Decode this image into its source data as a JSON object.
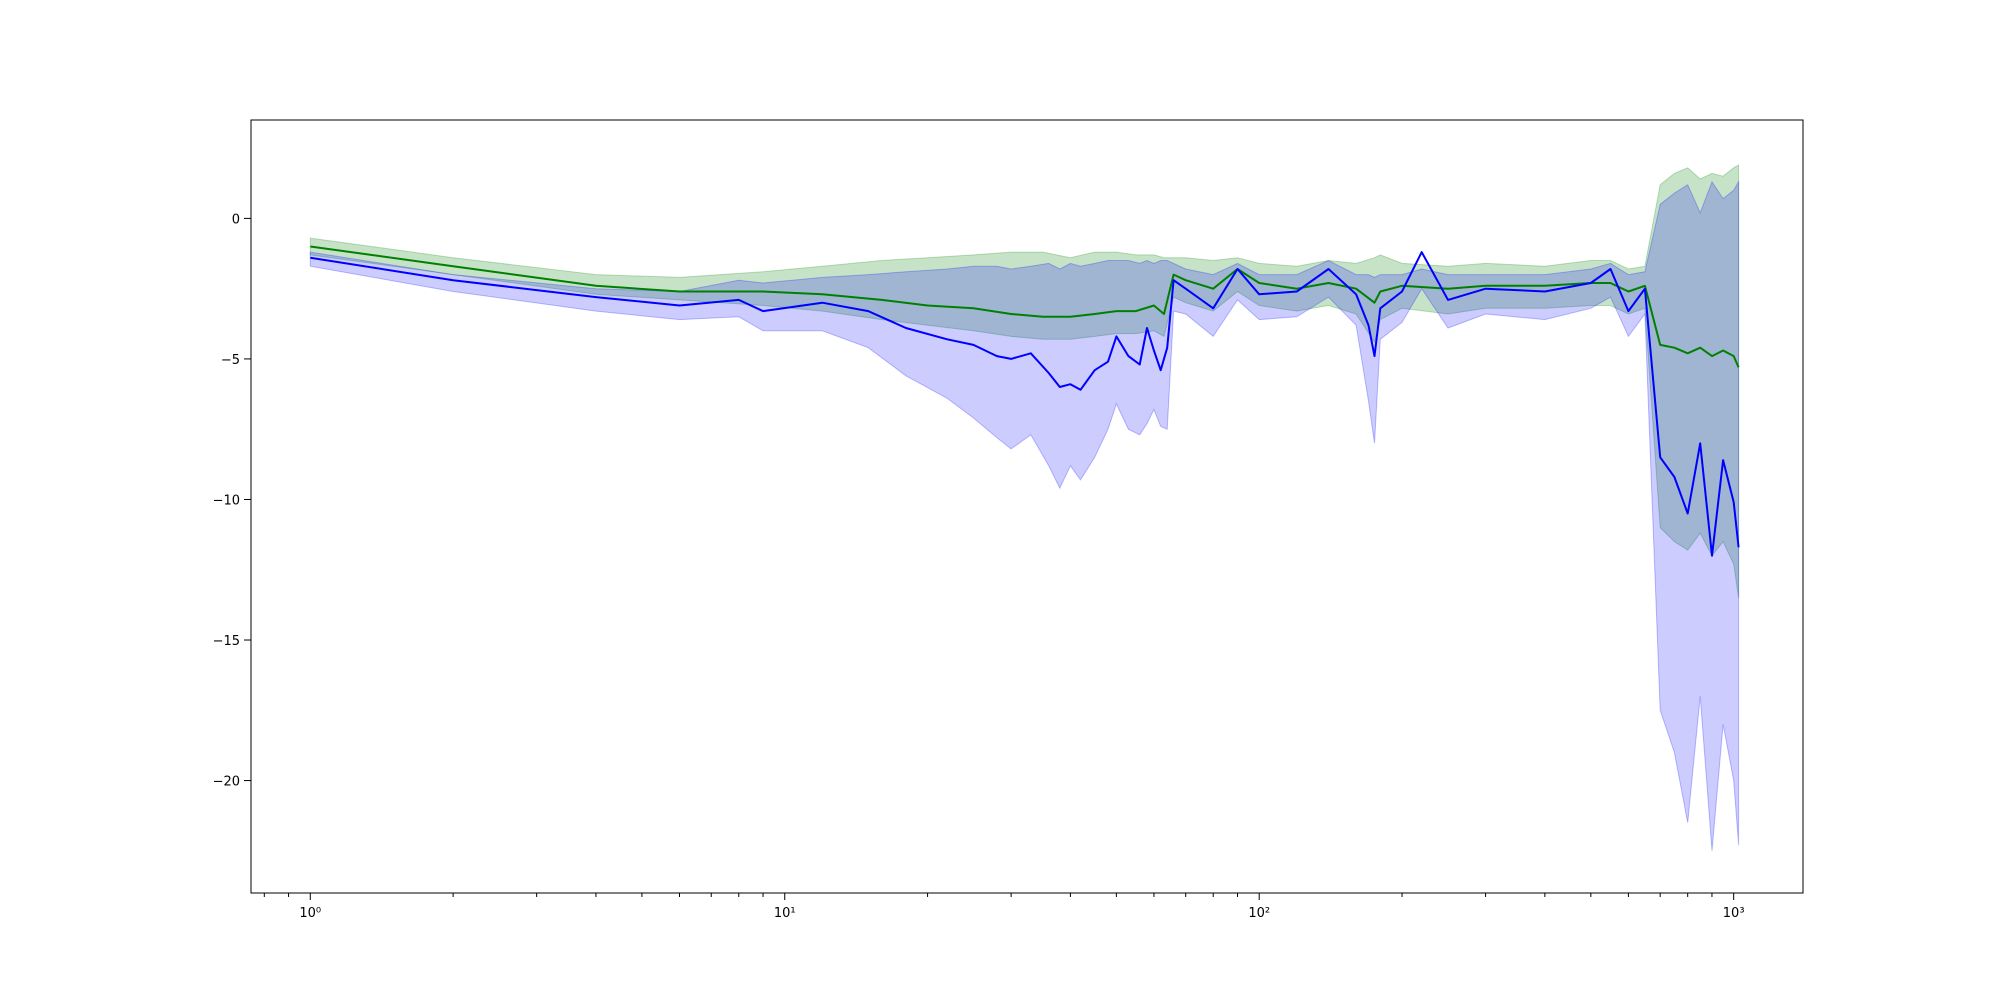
{
  "chart_data": {
    "type": "line",
    "title": "",
    "xlabel": "",
    "ylabel": "",
    "xscale": "log",
    "xlim": [
      0.75,
      1400
    ],
    "ylim": [
      -24.0,
      3.5
    ],
    "grid": false,
    "legend": "none",
    "x_ticks": [
      {
        "value": 1,
        "label": "10⁰"
      },
      {
        "value": 10,
        "label": "10¹"
      },
      {
        "value": 100,
        "label": "10²"
      },
      {
        "value": 1000,
        "label": "10³"
      }
    ],
    "y_ticks": [
      {
        "value": 0,
        "label": "0"
      },
      {
        "value": -5,
        "label": "−5"
      },
      {
        "value": -10,
        "label": "−10"
      },
      {
        "value": -15,
        "label": "−15"
      },
      {
        "value": -20,
        "label": "−20"
      }
    ],
    "series": [
      {
        "color": "#008000",
        "band_color": "#008000",
        "x": [
          1,
          2,
          4,
          6,
          9,
          12,
          16,
          20,
          25,
          30,
          35,
          40,
          45,
          50,
          55,
          60,
          63,
          66,
          70,
          80,
          90,
          100,
          120,
          140,
          160,
          175,
          180,
          200,
          250,
          300,
          400,
          500,
          550,
          600,
          650,
          700,
          750,
          800,
          850,
          900,
          950,
          1000,
          1024
        ],
        "y": [
          -1.0,
          -1.7,
          -2.4,
          -2.6,
          -2.6,
          -2.7,
          -2.9,
          -3.1,
          -3.2,
          -3.4,
          -3.5,
          -3.5,
          -3.4,
          -3.3,
          -3.3,
          -3.1,
          -3.4,
          -2.0,
          -2.2,
          -2.5,
          -1.8,
          -2.3,
          -2.5,
          -2.3,
          -2.5,
          -3.0,
          -2.6,
          -2.4,
          -2.5,
          -2.4,
          -2.4,
          -2.3,
          -2.3,
          -2.6,
          -2.4,
          -4.5,
          -4.6,
          -4.8,
          -4.6,
          -4.9,
          -4.7,
          -4.9,
          -5.3
        ],
        "upper": [
          -0.7,
          -1.4,
          -2.0,
          -2.1,
          -1.9,
          -1.7,
          -1.5,
          -1.4,
          -1.3,
          -1.2,
          -1.2,
          -1.4,
          -1.2,
          -1.2,
          -1.3,
          -1.3,
          -1.4,
          -1.4,
          -1.4,
          -1.5,
          -1.4,
          -1.6,
          -1.7,
          -1.5,
          -1.6,
          -1.4,
          -1.3,
          -1.6,
          -1.7,
          -1.6,
          -1.7,
          -1.5,
          -1.5,
          -1.8,
          -1.7,
          1.2,
          1.6,
          1.8,
          1.4,
          1.6,
          1.5,
          1.8,
          1.9
        ],
        "lower": [
          -1.3,
          -2.0,
          -2.7,
          -2.9,
          -3.1,
          -3.3,
          -3.6,
          -3.8,
          -4.0,
          -4.2,
          -4.3,
          -4.3,
          -4.2,
          -4.1,
          -4.1,
          -4.0,
          -4.2,
          -2.8,
          -3.0,
          -3.3,
          -2.6,
          -3.1,
          -3.3,
          -3.1,
          -3.4,
          -4.4,
          -3.6,
          -3.2,
          -3.4,
          -3.2,
          -3.2,
          -3.1,
          -3.1,
          -3.4,
          -3.2,
          -11.0,
          -11.5,
          -11.8,
          -11.2,
          -12.0,
          -11.5,
          -12.3,
          -13.5
        ]
      },
      {
        "color": "#0000ff",
        "band_color": "#0000ff",
        "x": [
          1,
          2,
          4,
          6,
          8,
          9,
          12,
          15,
          18,
          22,
          25,
          28,
          30,
          33,
          36,
          38,
          40,
          42,
          45,
          48,
          50,
          53,
          56,
          58,
          60,
          62,
          64,
          66,
          70,
          80,
          90,
          100,
          120,
          140,
          160,
          170,
          175,
          180,
          200,
          220,
          250,
          300,
          400,
          500,
          550,
          600,
          650,
          700,
          750,
          800,
          850,
          900,
          950,
          1000,
          1024
        ],
        "y": [
          -1.4,
          -2.2,
          -2.8,
          -3.1,
          -2.9,
          -3.3,
          -3.0,
          -3.3,
          -3.9,
          -4.3,
          -4.5,
          -4.9,
          -5.0,
          -4.8,
          -5.5,
          -6.0,
          -5.9,
          -6.1,
          -5.4,
          -5.1,
          -4.2,
          -4.9,
          -5.2,
          -3.9,
          -4.7,
          -5.4,
          -4.6,
          -2.2,
          -2.5,
          -3.2,
          -1.8,
          -2.7,
          -2.6,
          -1.8,
          -2.7,
          -3.8,
          -4.9,
          -3.2,
          -2.6,
          -1.2,
          -2.9,
          -2.5,
          -2.6,
          -2.3,
          -1.8,
          -3.3,
          -2.5,
          -8.5,
          -9.2,
          -10.5,
          -8.0,
          -12.0,
          -8.6,
          -10.1,
          -11.7
        ],
        "upper": [
          -1.2,
          -2.0,
          -2.5,
          -2.6,
          -2.2,
          -2.3,
          -2.1,
          -2.0,
          -1.9,
          -1.8,
          -1.7,
          -1.7,
          -1.8,
          -1.7,
          -1.6,
          -1.8,
          -1.6,
          -1.7,
          -1.6,
          -1.5,
          -1.5,
          -1.5,
          -1.6,
          -1.5,
          -1.6,
          -1.5,
          -1.5,
          -1.6,
          -1.8,
          -2.0,
          -1.6,
          -2.0,
          -2.0,
          -1.5,
          -2.0,
          -2.0,
          -2.1,
          -2.0,
          -2.0,
          -1.8,
          -2.0,
          -2.0,
          -2.0,
          -1.8,
          -1.6,
          -2.0,
          -1.9,
          0.5,
          0.9,
          1.2,
          0.2,
          1.3,
          0.7,
          1.0,
          1.3
        ],
        "lower": [
          -1.7,
          -2.6,
          -3.3,
          -3.6,
          -3.5,
          -4.0,
          -4.0,
          -4.6,
          -5.6,
          -6.4,
          -7.1,
          -7.8,
          -8.2,
          -7.7,
          -8.8,
          -9.6,
          -8.8,
          -9.3,
          -8.5,
          -7.5,
          -6.6,
          -7.5,
          -7.7,
          -7.3,
          -6.8,
          -7.4,
          -7.5,
          -3.3,
          -3.4,
          -4.2,
          -2.9,
          -3.6,
          -3.5,
          -2.8,
          -3.8,
          -6.5,
          -8.0,
          -4.3,
          -3.7,
          -2.5,
          -3.9,
          -3.4,
          -3.6,
          -3.2,
          -2.8,
          -4.2,
          -3.4,
          -17.5,
          -19.0,
          -21.5,
          -17.0,
          -22.5,
          -18.0,
          -20.0,
          -22.3
        ]
      }
    ]
  }
}
